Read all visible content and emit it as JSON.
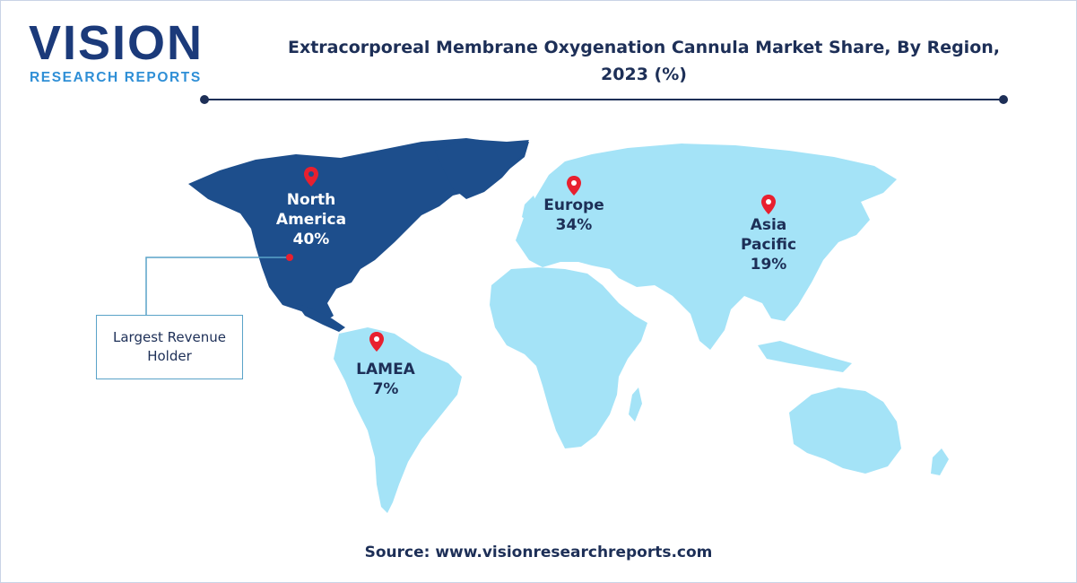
{
  "brand": {
    "name": "VISION",
    "tagline": "RESEARCH REPORTS",
    "primary_color": "#1b3a7a",
    "accent_color": "#2f8fd6"
  },
  "title_line1": "Extracorporeal Membrane Oxygenation Cannula Market Share, By Region,",
  "title_line2": "2023 (%)",
  "regions": [
    {
      "line1": "North",
      "line2": "America",
      "value": "40%",
      "share": 40,
      "highlight": true
    },
    {
      "line1": "Europe",
      "line2": "",
      "value": "34%",
      "share": 34,
      "highlight": false
    },
    {
      "line1": "Asia",
      "line2": "Pacific",
      "value": "19%",
      "share": 19,
      "highlight": false
    },
    {
      "line1": "LAMEA",
      "line2": "",
      "value": "7%",
      "share": 7,
      "highlight": false
    }
  ],
  "callout": {
    "text": "Largest Revenue Holder"
  },
  "colors": {
    "highlight_region": "#1d4e8c",
    "land": "#a4e3f7",
    "pin": "#e8202f",
    "text": "#1d2f57"
  },
  "source": "Source: www.visionresearchreports.com"
}
